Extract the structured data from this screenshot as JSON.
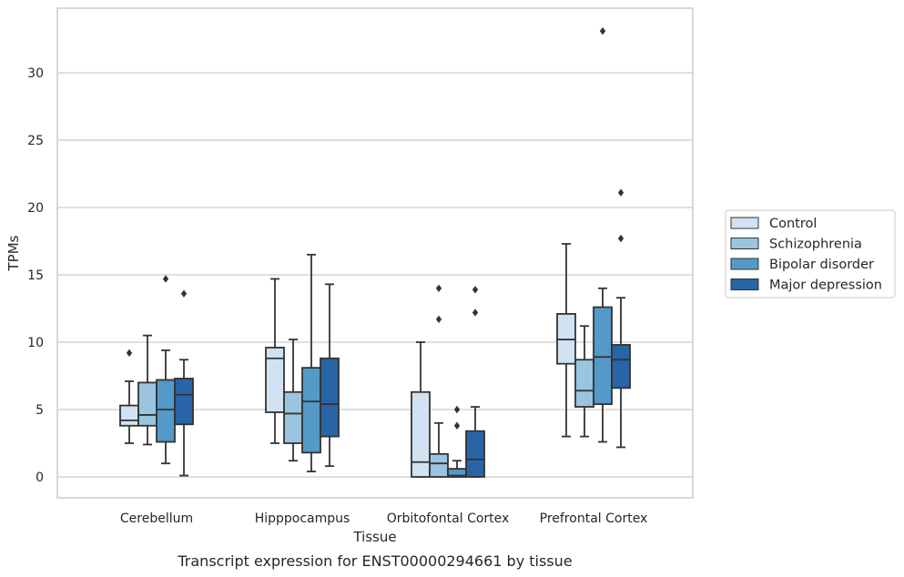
{
  "chart_data": {
    "type": "box",
    "caption": "Transcript expression for ENST00000294661 by tissue",
    "xlabel": "Tissue",
    "ylabel": "TPMs",
    "ylim": [
      -1.6,
      34.5
    ],
    "yticks": [
      0,
      5,
      10,
      15,
      20,
      25,
      30
    ],
    "grid": "horizontal",
    "legend_position": "right",
    "categories": [
      "Cerebellum",
      "Hipppocampus",
      "Orbitofontal Cortex",
      "Prefrontal Cortex"
    ],
    "series": [
      {
        "name": "Control",
        "color": "#d1e2f2",
        "boxes": [
          {
            "whisker_low": 2.5,
            "q1": 3.8,
            "median": 4.2,
            "q3": 5.3,
            "whisker_high": 7.1,
            "outliers": [
              9.2
            ]
          },
          {
            "whisker_low": 2.5,
            "q1": 4.8,
            "median": 8.8,
            "q3": 9.6,
            "whisker_high": 14.7,
            "outliers": []
          },
          {
            "whisker_low": 0,
            "q1": 0,
            "median": 1.1,
            "q3": 6.3,
            "whisker_high": 10.0,
            "outliers": []
          },
          {
            "whisker_low": 3.0,
            "q1": 8.4,
            "median": 10.2,
            "q3": 12.1,
            "whisker_high": 17.3,
            "outliers": []
          }
        ]
      },
      {
        "name": "Schizophrenia",
        "color": "#9ac4df",
        "boxes": [
          {
            "whisker_low": 2.4,
            "q1": 3.8,
            "median": 4.6,
            "q3": 7.0,
            "whisker_high": 10.5,
            "outliers": []
          },
          {
            "whisker_low": 1.2,
            "q1": 2.5,
            "median": 4.7,
            "q3": 6.3,
            "whisker_high": 10.2,
            "outliers": []
          },
          {
            "whisker_low": 0,
            "q1": 0,
            "median": 1.0,
            "q3": 1.7,
            "whisker_high": 4.0,
            "outliers": [
              11.7,
              14.0
            ]
          },
          {
            "whisker_low": 3.0,
            "q1": 5.2,
            "median": 6.4,
            "q3": 8.7,
            "whisker_high": 11.2,
            "outliers": []
          }
        ]
      },
      {
        "name": "Bipolar disorder",
        "color": "#5499c7",
        "boxes": [
          {
            "whisker_low": 1.0,
            "q1": 2.6,
            "median": 5.0,
            "q3": 7.2,
            "whisker_high": 9.4,
            "outliers": [
              14.7
            ]
          },
          {
            "whisker_low": 0.4,
            "q1": 1.8,
            "median": 5.6,
            "q3": 8.1,
            "whisker_high": 16.5,
            "outliers": []
          },
          {
            "whisker_low": 0,
            "q1": 0,
            "median": 0.1,
            "q3": 0.6,
            "whisker_high": 1.2,
            "outliers": [
              3.8,
              5.0
            ]
          },
          {
            "whisker_low": 2.6,
            "q1": 5.4,
            "median": 8.9,
            "q3": 12.6,
            "whisker_high": 14.0,
            "outliers": [
              33.1
            ]
          }
        ]
      },
      {
        "name": "Major depression",
        "color": "#2964a6",
        "boxes": [
          {
            "whisker_low": 0.1,
            "q1": 3.9,
            "median": 6.1,
            "q3": 7.3,
            "whisker_high": 8.7,
            "outliers": [
              13.6
            ]
          },
          {
            "whisker_low": 0.8,
            "q1": 3.0,
            "median": 5.4,
            "q3": 8.8,
            "whisker_high": 14.3,
            "outliers": []
          },
          {
            "whisker_low": 0,
            "q1": 0,
            "median": 1.3,
            "q3": 3.4,
            "whisker_high": 5.2,
            "outliers": [
              12.2,
              13.9
            ]
          },
          {
            "whisker_low": 2.2,
            "q1": 6.6,
            "median": 8.7,
            "q3": 9.8,
            "whisker_high": 13.3,
            "outliers": [
              17.7,
              21.1
            ]
          }
        ]
      }
    ]
  }
}
